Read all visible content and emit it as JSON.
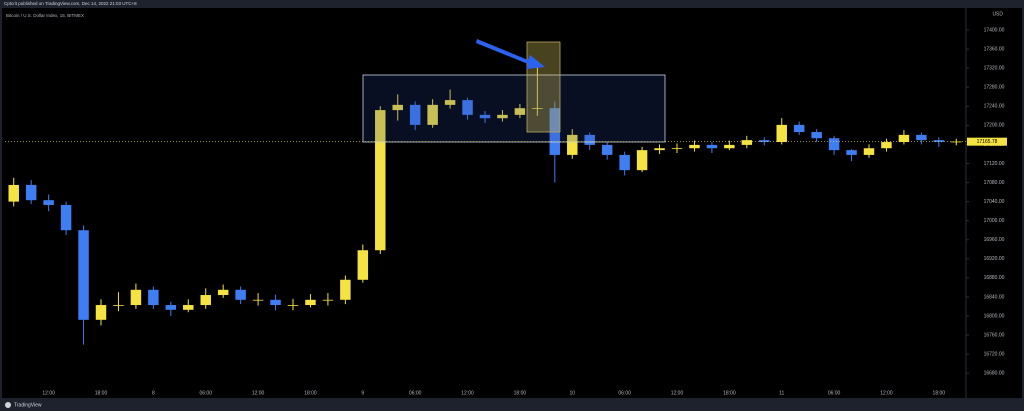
{
  "chart_data": {
    "type": "candlestick",
    "published": "Cptcrit published on TradingView.com, Dec 14, 2022 21:03 UTC+8",
    "title": "Bitcoin / U.S. Dollar Index, 15, BITMEX",
    "currency": "USD",
    "brand": "TradingView",
    "categories": [
      null,
      null,
      "12:00",
      null,
      null,
      "18:00",
      null,
      null,
      "8",
      null,
      null,
      "06:00",
      null,
      null,
      "12:00",
      null,
      null,
      "18:00",
      null,
      null,
      "9",
      null,
      null,
      "06:00",
      null,
      null,
      "12:00",
      null,
      null,
      "18:00",
      null,
      null,
      "10",
      null,
      null,
      "06:00",
      null,
      null,
      "12:00",
      null,
      null,
      "18:00",
      null,
      null,
      "11",
      null,
      null,
      "06:00",
      null,
      null,
      "12:00",
      null,
      null,
      "18:00",
      null
    ],
    "open": [
      17040,
      17075,
      17043,
      17033,
      16980,
      16792,
      16823,
      16823,
      16855,
      16823,
      16813,
      16823,
      16844,
      16855,
      16834,
      16834,
      16823,
      16823,
      16834,
      16834,
      16876,
      16938,
      17232,
      17243,
      17201,
      17243,
      17253,
      17222,
      17215,
      17222,
      17236,
      17236,
      17138,
      17180,
      17159,
      17138,
      17106,
      17148,
      17152,
      17152,
      17159,
      17152,
      17159,
      17169,
      17165,
      17201,
      17186,
      17173,
      17148,
      17138,
      17152,
      17165,
      17180,
      17169,
      17165
    ],
    "high": [
      17090,
      17085,
      17055,
      17040,
      16990,
      16835,
      16850,
      16868,
      16862,
      16830,
      16835,
      16858,
      16866,
      16862,
      16848,
      16845,
      16836,
      16846,
      16848,
      16885,
      16950,
      17240,
      17265,
      17250,
      17255,
      17275,
      17258,
      17230,
      17232,
      17245,
      17335,
      17250,
      17192,
      17185,
      17165,
      17145,
      17155,
      17160,
      17162,
      17168,
      17165,
      17168,
      17178,
      17175,
      17215,
      17208,
      17192,
      17178,
      17150,
      17160,
      17172,
      17190,
      17185,
      17175,
      17172
    ],
    "low": [
      17030,
      17035,
      17020,
      16970,
      16740,
      16780,
      16810,
      16815,
      16815,
      16800,
      16808,
      16815,
      16838,
      16825,
      16822,
      16812,
      16812,
      16818,
      16822,
      16825,
      16870,
      16930,
      17210,
      17190,
      17195,
      17235,
      17212,
      17205,
      17208,
      17215,
      17220,
      17080,
      17130,
      17148,
      17128,
      17095,
      17102,
      17140,
      17142,
      17145,
      17142,
      17148,
      17152,
      17158,
      17160,
      17180,
      17165,
      17138,
      17125,
      17132,
      17145,
      17160,
      17160,
      17155,
      17158
    ],
    "close": [
      17075,
      17043,
      17033,
      16980,
      16792,
      16823,
      16823,
      16855,
      16823,
      16813,
      16823,
      16844,
      16855,
      16834,
      16834,
      16823,
      16823,
      16834,
      16834,
      16876,
      16938,
      17232,
      17243,
      17201,
      17243,
      17253,
      17222,
      17215,
      17222,
      17236,
      17236,
      17138,
      17180,
      17159,
      17138,
      17106,
      17148,
      17152,
      17152,
      17159,
      17152,
      17159,
      17169,
      17165,
      17201,
      17186,
      17173,
      17148,
      17138,
      17152,
      17165,
      17180,
      17169,
      17165,
      17166
    ],
    "up_color": "#f4e342",
    "down_color": "#3f7df2",
    "current_price": 17165.78,
    "ylim": [
      16650,
      17420
    ],
    "yticks": [
      {
        "value": 16680,
        "label": "16680.00"
      },
      {
        "value": 16720,
        "label": "16720.00"
      },
      {
        "value": 16760,
        "label": "16760.00"
      },
      {
        "value": 16800,
        "label": "16800.00"
      },
      {
        "value": 16840,
        "label": "16840.00"
      },
      {
        "value": 16880,
        "label": "16880.00"
      },
      {
        "value": 16920,
        "label": "16920.00"
      },
      {
        "value": 16960,
        "label": "16960.00"
      },
      {
        "value": 17000,
        "label": "17000.00"
      },
      {
        "value": 17040,
        "label": "17040.00"
      },
      {
        "value": 17080,
        "label": "17080.00"
      },
      {
        "value": 17120,
        "label": "17120.00"
      },
      {
        "value": 17160,
        "label": "17160.00"
      },
      {
        "value": 17200,
        "label": "17200.00"
      },
      {
        "value": 17240,
        "label": "17240.00"
      },
      {
        "value": 17280,
        "label": "17280.00"
      },
      {
        "value": 17320,
        "label": "17320.00"
      },
      {
        "value": 17360,
        "label": "17360.00"
      },
      {
        "value": 17400,
        "label": "17400.00"
      }
    ],
    "grid": false
  }
}
